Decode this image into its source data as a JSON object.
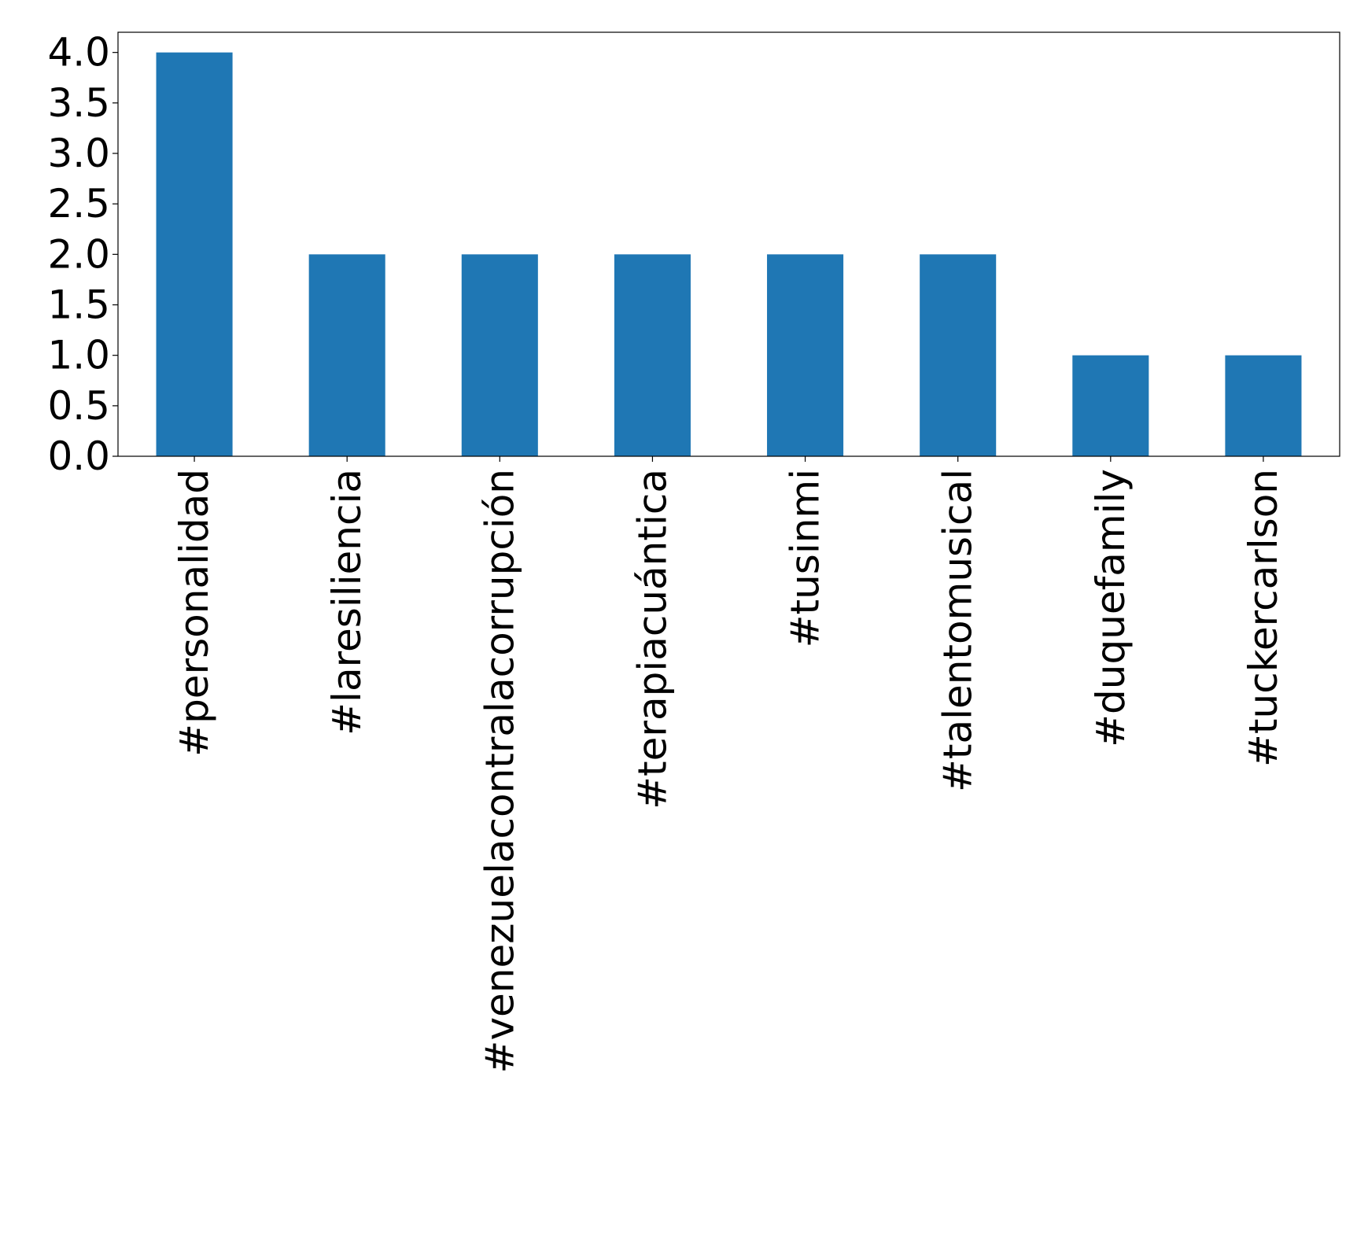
{
  "chart_data": {
    "type": "bar",
    "title": "",
    "xlabel": "",
    "ylabel": "",
    "categories": [
      "#personalidad",
      "#laresiliencia",
      "#venezuelacontralacorrupción",
      "#terapiacuántica",
      "#tusinmi",
      "#talentomusical",
      "#duquefamily",
      "#tuckercarlson"
    ],
    "values": [
      4,
      2,
      2,
      2,
      2,
      2,
      1,
      1
    ],
    "ylim": [
      0,
      4.2
    ],
    "yticks": [
      "0.0",
      "0.5",
      "1.0",
      "1.5",
      "2.0",
      "2.5",
      "3.0",
      "3.5",
      "4.0"
    ],
    "grid": false,
    "legend": "none",
    "bar_color": "#1f77b4"
  }
}
